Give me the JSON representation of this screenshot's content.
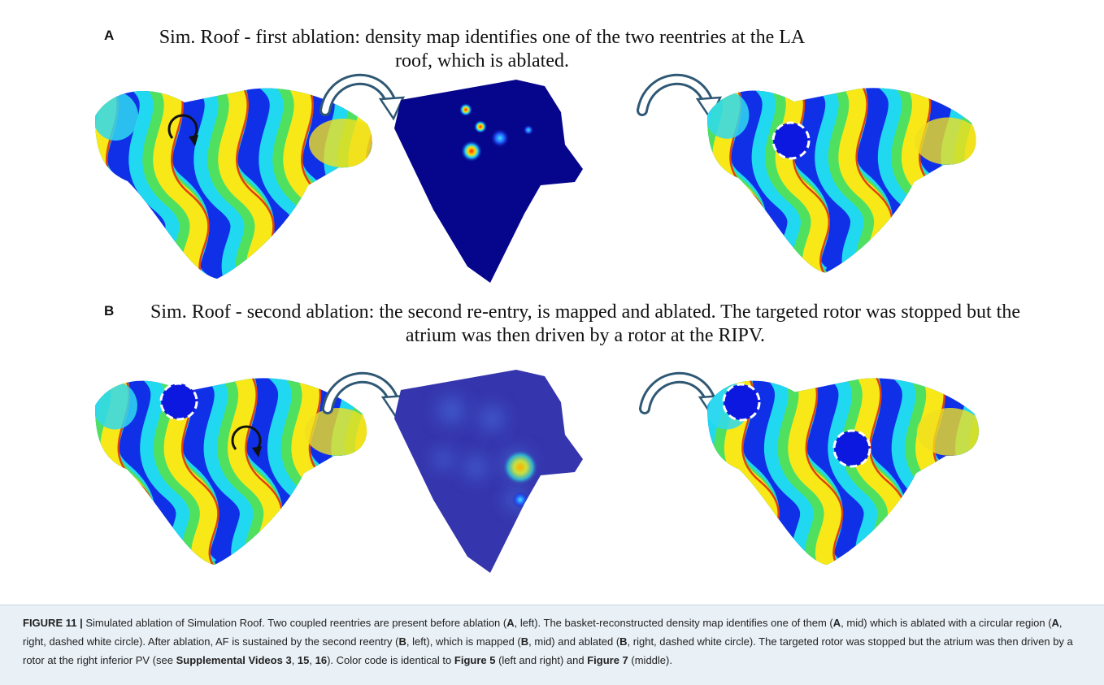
{
  "panels": [
    {
      "label": "A",
      "title": "Sim. Roof - first ablation: density map identifies one of the two reentries at the LA roof, which is ablated."
    },
    {
      "label": "B",
      "title": "Sim. Roof - second ablation: the second re-entry, is mapped and ablated. The targeted rotor was stopped but the atrium was then driven by a rotor at the RIPV."
    }
  ],
  "caption": {
    "segments": [
      {
        "text": "FIGURE 11 |",
        "bold": true
      },
      {
        "text": " Simulated ablation of Simulation Roof. Two coupled reentries are present before ablation (",
        "bold": false
      },
      {
        "text": "A",
        "bold": true
      },
      {
        "text": ", left). The basket-reconstructed density map identifies one of them (",
        "bold": false
      },
      {
        "text": "A",
        "bold": true
      },
      {
        "text": ", mid) which is ablated with a circular region (",
        "bold": false
      },
      {
        "text": "A",
        "bold": true
      },
      {
        "text": ", right, dashed white circle). After ablation, AF is sustained by the second reentry (",
        "bold": false
      },
      {
        "text": "B",
        "bold": true
      },
      {
        "text": ", left), which is mapped (",
        "bold": false
      },
      {
        "text": "B",
        "bold": true
      },
      {
        "text": ", mid) and ablated (",
        "bold": false
      },
      {
        "text": "B",
        "bold": true
      },
      {
        "text": ", right, dashed white circle). The targeted rotor was stopped but the atrium was then driven by a rotor at the right inferior PV (see ",
        "bold": false
      },
      {
        "text": "Supplemental Videos 3",
        "bold": true
      },
      {
        "text": ", ",
        "bold": false
      },
      {
        "text": "15",
        "bold": true
      },
      {
        "text": ", ",
        "bold": false
      },
      {
        "text": "16",
        "bold": true
      },
      {
        "text": "). Color code is identical to ",
        "bold": false
      },
      {
        "text": "Figure 5",
        "bold": true
      },
      {
        "text": " (left and right) and ",
        "bold": false
      },
      {
        "text": "Figure 7",
        "bold": true
      },
      {
        "text": " (middle).",
        "bold": false
      }
    ]
  }
}
